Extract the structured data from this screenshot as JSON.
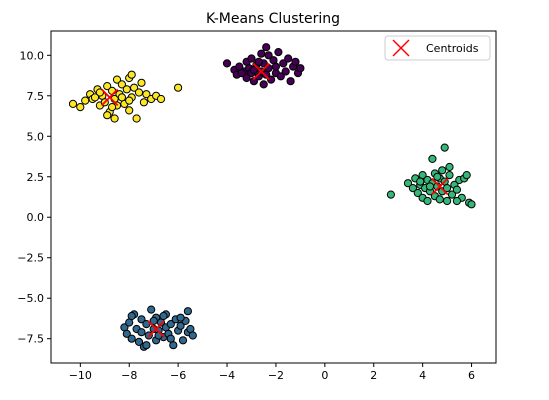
{
  "chart_data": {
    "type": "scatter",
    "title": "K-Means Clustering",
    "xlabel": "",
    "ylabel": "",
    "xlim": [
      -11.2,
      7.0
    ],
    "ylim": [
      -9.0,
      11.5
    ],
    "x_ticks": [
      -10,
      -8,
      -6,
      -4,
      -2,
      0,
      2,
      4,
      6
    ],
    "y_ticks": [
      -7.5,
      -5.0,
      -2.5,
      0.0,
      2.5,
      5.0,
      7.5,
      10.0
    ],
    "x_tick_labels": [
      "−10",
      "−8",
      "−6",
      "−4",
      "−2",
      "0",
      "2",
      "4",
      "6"
    ],
    "y_tick_labels": [
      "−7.5",
      "−5.0",
      "−2.5",
      "0.0",
      "2.5",
      "5.0",
      "7.5",
      "10.0"
    ],
    "grid": false,
    "legend": {
      "position": "top-right",
      "entries": [
        "Centroids"
      ]
    },
    "clusters": [
      {
        "color": "#fde725",
        "points": [
          [
            -10.3,
            7.0
          ],
          [
            -10.0,
            6.8
          ],
          [
            -9.8,
            7.2
          ],
          [
            -9.6,
            7.6
          ],
          [
            -9.5,
            7.3
          ],
          [
            -9.3,
            7.9
          ],
          [
            -9.2,
            6.9
          ],
          [
            -9.1,
            7.5
          ],
          [
            -9.0,
            7.1
          ],
          [
            -8.9,
            8.1
          ],
          [
            -8.8,
            6.5
          ],
          [
            -8.7,
            7.8
          ],
          [
            -8.6,
            7.3
          ],
          [
            -8.5,
            8.5
          ],
          [
            -8.5,
            6.9
          ],
          [
            -8.4,
            7.6
          ],
          [
            -8.3,
            8.2
          ],
          [
            -8.2,
            7.0
          ],
          [
            -8.1,
            7.9
          ],
          [
            -8.0,
            8.6
          ],
          [
            -8.0,
            6.6
          ],
          [
            -7.9,
            7.4
          ],
          [
            -7.8,
            8.0
          ],
          [
            -7.7,
            6.1
          ],
          [
            -7.6,
            7.7
          ],
          [
            -7.5,
            8.3
          ],
          [
            -7.4,
            7.1
          ],
          [
            -7.3,
            7.6
          ],
          [
            -7.1,
            7.3
          ],
          [
            -6.9,
            7.5
          ],
          [
            -8.9,
            6.3
          ],
          [
            -9.2,
            7.7
          ],
          [
            -8.6,
            6.1
          ],
          [
            -8.3,
            7.4
          ],
          [
            -7.9,
            8.8
          ],
          [
            -6.7,
            7.3
          ],
          [
            -6.0,
            8.0
          ],
          [
            -9.4,
            7.4
          ],
          [
            -8.7,
            6.8
          ],
          [
            -8.0,
            7.2
          ]
        ]
      },
      {
        "color": "#440154",
        "points": [
          [
            -4.0,
            9.5
          ],
          [
            -3.7,
            9.1
          ],
          [
            -3.6,
            8.8
          ],
          [
            -3.5,
            9.3
          ],
          [
            -3.3,
            9.0
          ],
          [
            -3.2,
            8.6
          ],
          [
            -3.2,
            9.6
          ],
          [
            -3.1,
            9.2
          ],
          [
            -3.0,
            8.9
          ],
          [
            -3.0,
            9.8
          ],
          [
            -2.9,
            8.4
          ],
          [
            -2.8,
            9.4
          ],
          [
            -2.7,
            8.7
          ],
          [
            -2.6,
            10.1
          ],
          [
            -2.6,
            9.0
          ],
          [
            -2.5,
            8.2
          ],
          [
            -2.5,
            9.5
          ],
          [
            -2.4,
            8.8
          ],
          [
            -2.3,
            10.0
          ],
          [
            -2.3,
            9.2
          ],
          [
            -2.2,
            8.5
          ],
          [
            -2.1,
            9.7
          ],
          [
            -2.0,
            8.9
          ],
          [
            -2.0,
            9.3
          ],
          [
            -1.9,
            10.2
          ],
          [
            -1.8,
            8.7
          ],
          [
            -1.7,
            9.5
          ],
          [
            -1.6,
            9.0
          ],
          [
            -1.5,
            9.8
          ],
          [
            -1.4,
            8.4
          ],
          [
            -1.3,
            9.3
          ],
          [
            -1.2,
            9.6
          ],
          [
            -1.1,
            8.9
          ],
          [
            -1.0,
            9.2
          ],
          [
            -2.4,
            10.5
          ],
          [
            -2.7,
            9.6
          ],
          [
            -3.4,
            8.9
          ],
          [
            -2.9,
            9.1
          ]
        ]
      },
      {
        "color": "#35b779",
        "points": [
          [
            2.7,
            1.4
          ],
          [
            3.4,
            2.1
          ],
          [
            3.6,
            1.8
          ],
          [
            3.7,
            2.4
          ],
          [
            3.8,
            1.5
          ],
          [
            3.9,
            2.0
          ],
          [
            4.0,
            2.6
          ],
          [
            4.0,
            1.2
          ],
          [
            4.1,
            1.8
          ],
          [
            4.2,
            2.3
          ],
          [
            4.2,
            1.0
          ],
          [
            4.3,
            1.6
          ],
          [
            4.4,
            2.1
          ],
          [
            4.4,
            3.6
          ],
          [
            4.5,
            1.3
          ],
          [
            4.5,
            2.7
          ],
          [
            4.6,
            1.9
          ],
          [
            4.7,
            2.4
          ],
          [
            4.7,
            1.1
          ],
          [
            4.8,
            2.9
          ],
          [
            4.8,
            1.6
          ],
          [
            4.9,
            2.2
          ],
          [
            4.9,
            4.3
          ],
          [
            5.0,
            1.0
          ],
          [
            5.0,
            1.8
          ],
          [
            5.1,
            2.6
          ],
          [
            5.1,
            3.1
          ],
          [
            5.2,
            1.4
          ],
          [
            5.3,
            2.0
          ],
          [
            5.4,
            1.7
          ],
          [
            5.5,
            2.3
          ],
          [
            5.6,
            1.2
          ],
          [
            5.7,
            2.4
          ],
          [
            5.8,
            2.6
          ],
          [
            5.9,
            0.9
          ],
          [
            6.0,
            0.8
          ],
          [
            5.4,
            1.0
          ],
          [
            4.6,
            2.5
          ],
          [
            4.3,
            1.9
          ],
          [
            3.9,
            2.2
          ]
        ]
      },
      {
        "color": "#31688e",
        "points": [
          [
            -8.2,
            -6.8
          ],
          [
            -8.1,
            -7.2
          ],
          [
            -8.0,
            -6.5
          ],
          [
            -7.9,
            -7.5
          ],
          [
            -7.8,
            -6.0
          ],
          [
            -7.7,
            -6.9
          ],
          [
            -7.6,
            -7.7
          ],
          [
            -7.5,
            -6.3
          ],
          [
            -7.5,
            -7.1
          ],
          [
            -7.4,
            -8.0
          ],
          [
            -7.3,
            -6.6
          ],
          [
            -7.2,
            -7.3
          ],
          [
            -7.1,
            -5.7
          ],
          [
            -7.0,
            -6.9
          ],
          [
            -6.9,
            -7.6
          ],
          [
            -6.9,
            -6.2
          ],
          [
            -6.8,
            -7.0
          ],
          [
            -6.7,
            -6.5
          ],
          [
            -6.6,
            -7.4
          ],
          [
            -6.5,
            -6.8
          ],
          [
            -6.5,
            -6.0
          ],
          [
            -6.4,
            -7.2
          ],
          [
            -6.3,
            -6.6
          ],
          [
            -6.2,
            -7.9
          ],
          [
            -6.1,
            -6.3
          ],
          [
            -6.0,
            -7.0
          ],
          [
            -5.9,
            -6.7
          ],
          [
            -5.8,
            -7.6
          ],
          [
            -5.7,
            -6.4
          ],
          [
            -5.6,
            -7.1
          ],
          [
            -5.5,
            -6.9
          ],
          [
            -5.4,
            -7.3
          ],
          [
            -5.6,
            -5.8
          ],
          [
            -7.9,
            -6.1
          ],
          [
            -7.3,
            -7.9
          ],
          [
            -6.6,
            -6.1
          ],
          [
            -6.3,
            -7.5
          ],
          [
            -7.0,
            -6.4
          ],
          [
            -6.8,
            -7.3
          ],
          [
            -5.9,
            -6.2
          ]
        ]
      }
    ],
    "centroids": [
      [
        -8.8,
        7.4
      ],
      [
        -2.6,
        9.0
      ],
      [
        4.7,
        1.9
      ],
      [
        -6.9,
        -6.9
      ]
    ],
    "centroid_color": "#ff0000"
  }
}
